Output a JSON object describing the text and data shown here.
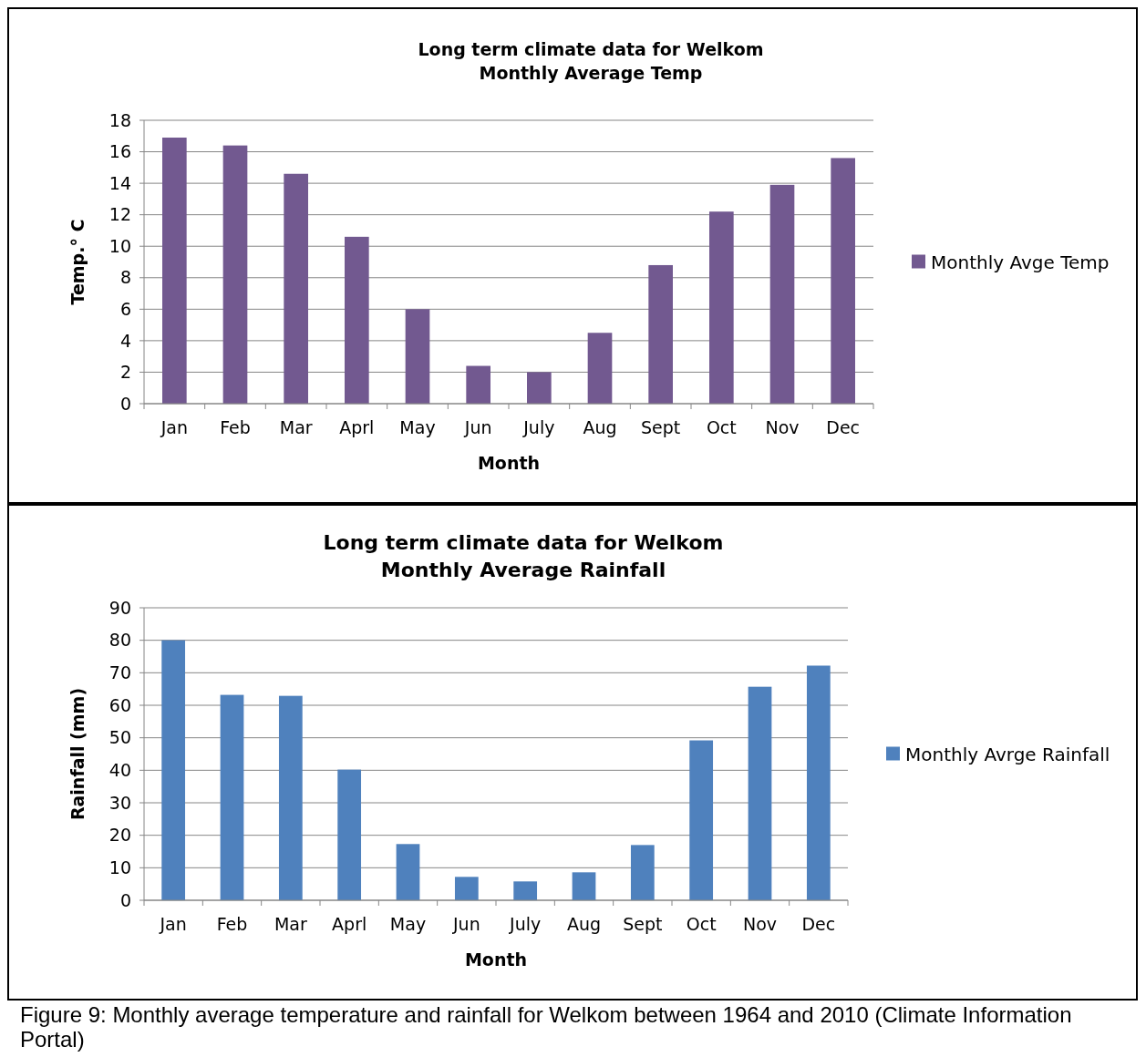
{
  "chart_data": [
    {
      "type": "bar",
      "title": "Long term climate data for Welkom",
      "subtitle": "Monthly Average Temp",
      "xlabel": "Month",
      "ylabel": "Temp.° C",
      "categories": [
        "Jan",
        "Feb",
        "Mar",
        "Aprl",
        "May",
        "Jun",
        "July",
        "Aug",
        "Sept",
        "Oct",
        "Nov",
        "Dec"
      ],
      "series": [
        {
          "name": "Monthly Avge Temp",
          "color": "#725990",
          "values": [
            16.9,
            16.4,
            14.6,
            10.6,
            6.0,
            2.4,
            2.0,
            4.5,
            8.8,
            12.2,
            13.9,
            15.6
          ]
        }
      ],
      "ylim": [
        0,
        18
      ],
      "yticks": [
        0,
        2,
        4,
        6,
        8,
        10,
        12,
        14,
        16,
        18
      ],
      "grid": "y",
      "legend": "right"
    },
    {
      "type": "bar",
      "title": "Long term climate data for Welkom",
      "subtitle": "Monthly Average Rainfall",
      "xlabel": "Month",
      "ylabel": "Rainfall (mm)",
      "categories": [
        "Jan",
        "Feb",
        "Mar",
        "Aprl",
        "May",
        "Jun",
        "July",
        "Aug",
        "Sept",
        "Oct",
        "Nov",
        "Dec"
      ],
      "series": [
        {
          "name": "Monthly Avrge Rainfall",
          "color": "#4f81bd",
          "values": [
            80,
            63.2,
            62.9,
            40.2,
            17.3,
            7.2,
            5.8,
            8.6,
            17,
            49.2,
            65.7,
            72.2
          ]
        }
      ],
      "ylim": [
        0,
        90
      ],
      "yticks": [
        0,
        10,
        20,
        30,
        40,
        50,
        60,
        70,
        80,
        90
      ],
      "grid": "y",
      "legend": "right",
      "annotations": [
        "Figure 9: Monthly average temperature and rainfall for Welkom between 1964 and 2010 (Climate Information Portal)"
      ]
    }
  ]
}
